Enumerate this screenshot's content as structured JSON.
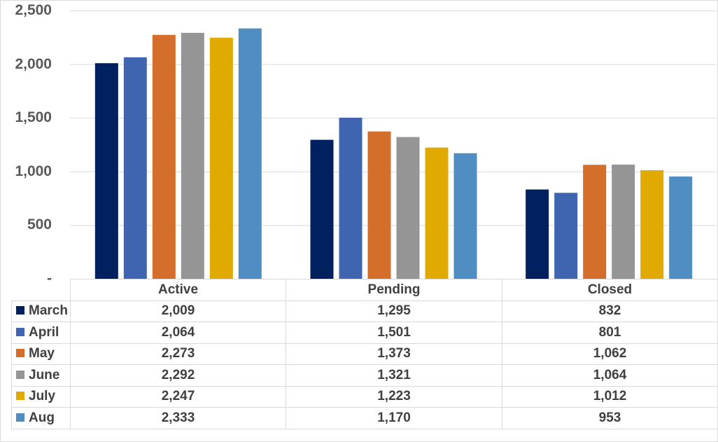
{
  "chart_data": {
    "type": "bar",
    "categories": [
      "Active",
      "Pending",
      "Closed"
    ],
    "series": [
      {
        "name": "March",
        "color": "#002060",
        "values": [
          2009,
          1295,
          832
        ],
        "labels": [
          "2,009",
          "1,295",
          "832"
        ]
      },
      {
        "name": "April",
        "color": "#3f64b0",
        "values": [
          2064,
          1501,
          801
        ],
        "labels": [
          "2,064",
          "1,501",
          "801"
        ]
      },
      {
        "name": "May",
        "color": "#d36e2b",
        "values": [
          2273,
          1373,
          1062
        ],
        "labels": [
          "2,273",
          "1,373",
          "1,062"
        ]
      },
      {
        "name": "June",
        "color": "#959595",
        "values": [
          2292,
          1321,
          1064
        ],
        "labels": [
          "2,292",
          "1,321",
          "1,064"
        ]
      },
      {
        "name": "July",
        "color": "#e1aa00",
        "values": [
          2247,
          1223,
          1012
        ],
        "labels": [
          "2,247",
          "1,223",
          "1,012"
        ]
      },
      {
        "name": "Aug",
        "color": "#4f8dc2",
        "values": [
          2333,
          1170,
          953
        ],
        "labels": [
          "2,333",
          "1,170",
          "953"
        ]
      }
    ],
    "ylim": [
      0,
      2500
    ],
    "yticks": [
      0,
      500,
      1000,
      1500,
      2000,
      2500
    ],
    "ytick_labels": [
      "-",
      "500",
      "1,000",
      "1,500",
      "2,000",
      "2,500"
    ],
    "grid": true,
    "legend": "data-table"
  }
}
